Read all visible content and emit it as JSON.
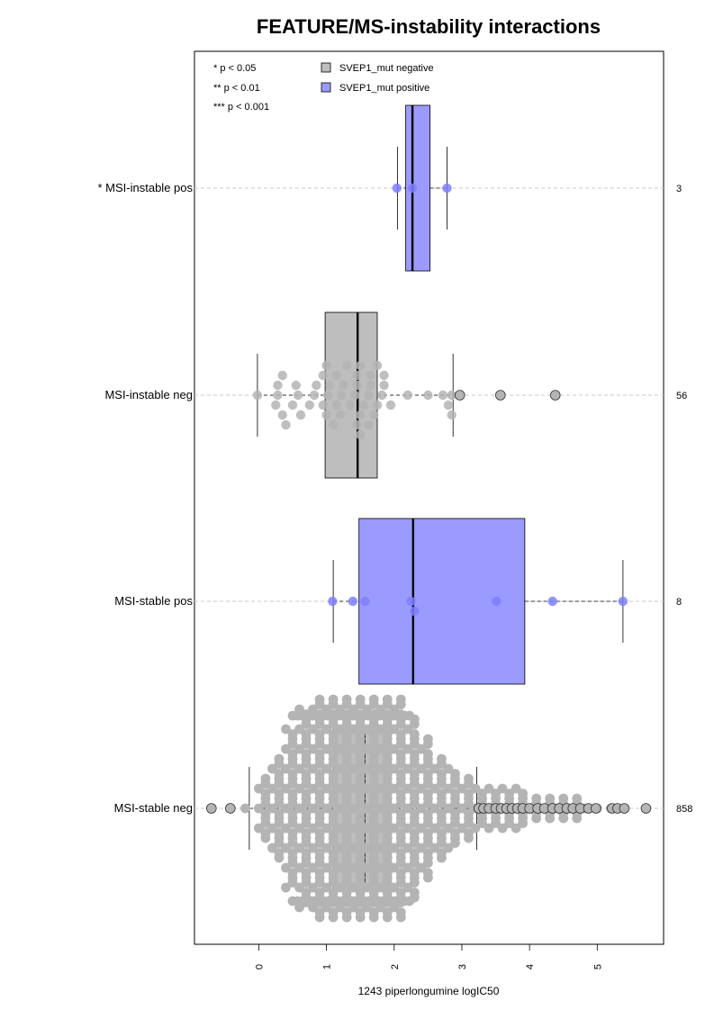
{
  "chart_data": {
    "type": "boxplot-beeswarm",
    "title": "FEATURE/MS-instability interactions",
    "xlabel": "1243 piperlongumine logIC50",
    "xlim": [
      -0.95,
      5.98
    ],
    "x_ticks": [
      "0",
      "1",
      "2",
      "3",
      "4",
      "5"
    ],
    "significance_legend": [
      "* p < 0.05",
      "** p < 0.01",
      "*** p < 0.001"
    ],
    "legend": [
      {
        "label": "SVEP1_mut negative",
        "color": "#bebebe"
      },
      {
        "label": "SVEP1_mut positive",
        "color": "#9b9bff"
      }
    ],
    "groups": [
      {
        "label": "* MSI-instable pos",
        "count": "3",
        "mutation": "positive",
        "box": {
          "min": 2.05,
          "q1": 2.17,
          "median": 2.27,
          "q3": 2.53,
          "max": 2.78
        },
        "points": [
          [
            2.04,
            0
          ],
          [
            2.27,
            0
          ],
          [
            2.78,
            0
          ]
        ],
        "outliers": []
      },
      {
        "label": "MSI-instable neg",
        "count": "56",
        "mutation": "negative",
        "box": {
          "min": -0.02,
          "q1": 0.98,
          "median": 1.46,
          "q3": 1.75,
          "max": 2.87
        },
        "points": [
          [
            -0.02,
            0
          ],
          [
            0.28,
            0
          ],
          [
            0.58,
            0
          ],
          [
            0.82,
            0
          ],
          [
            1.02,
            0
          ],
          [
            1.22,
            0
          ],
          [
            1.42,
            0
          ],
          [
            1.62,
            0
          ],
          [
            1.82,
            0
          ],
          [
            2.2,
            0
          ],
          [
            2.5,
            0
          ],
          [
            2.72,
            0
          ],
          [
            2.85,
            0
          ],
          [
            0.25,
            1
          ],
          [
            0.5,
            1
          ],
          [
            0.75,
            1
          ],
          [
            0.95,
            1
          ],
          [
            1.15,
            1
          ],
          [
            1.35,
            1
          ],
          [
            1.55,
            1
          ],
          [
            1.75,
            1
          ],
          [
            1.95,
            1
          ],
          [
            2.8,
            1
          ],
          [
            0.28,
            -1
          ],
          [
            0.55,
            -1
          ],
          [
            0.85,
            -1
          ],
          [
            1.05,
            -1
          ],
          [
            1.25,
            -1
          ],
          [
            1.45,
            -1
          ],
          [
            1.65,
            -1
          ],
          [
            1.85,
            -1
          ],
          [
            0.35,
            2
          ],
          [
            0.62,
            2
          ],
          [
            1.0,
            2
          ],
          [
            1.2,
            2
          ],
          [
            1.5,
            2
          ],
          [
            1.7,
            2
          ],
          [
            2.85,
            2
          ],
          [
            0.35,
            -2
          ],
          [
            0.95,
            -2
          ],
          [
            1.15,
            -2
          ],
          [
            1.45,
            -2
          ],
          [
            1.65,
            -2
          ],
          [
            1.85,
            -2
          ],
          [
            0.4,
            3
          ],
          [
            1.1,
            3
          ],
          [
            1.45,
            3
          ],
          [
            1.62,
            3
          ],
          [
            1.0,
            -3
          ],
          [
            1.3,
            -3
          ],
          [
            1.5,
            -3
          ],
          [
            1.75,
            -3
          ],
          [
            1.5,
            4
          ]
        ],
        "outliers": [
          2.97,
          3.57,
          4.38
        ]
      },
      {
        "label": "MSI-stable pos",
        "count": "8",
        "mutation": "positive",
        "box": {
          "min": 1.1,
          "q1": 1.48,
          "median": 2.28,
          "q3": 3.93,
          "max": 5.38
        },
        "points": [
          [
            1.09,
            0
          ],
          [
            1.39,
            0
          ],
          [
            1.57,
            0
          ],
          [
            2.25,
            0
          ],
          [
            2.3,
            1
          ],
          [
            3.51,
            0
          ],
          [
            4.34,
            0
          ],
          [
            5.38,
            0
          ]
        ],
        "outliers": []
      },
      {
        "label": "MSI-stable neg",
        "count": "858",
        "mutation": "negative",
        "box": {
          "min": -0.14,
          "q1": 1.1,
          "median": 1.56,
          "q3": 1.95,
          "max": 3.22
        },
        "swarm_profile": [
          [
            -0.2,
            1
          ],
          [
            0.0,
            4
          ],
          [
            0.2,
            6
          ],
          [
            0.4,
            9
          ],
          [
            0.6,
            11
          ],
          [
            0.8,
            12
          ],
          [
            1.0,
            12
          ],
          [
            1.2,
            12
          ],
          [
            1.4,
            12
          ],
          [
            1.6,
            12
          ],
          [
            1.8,
            12
          ],
          [
            2.0,
            12
          ],
          [
            2.2,
            10
          ],
          [
            2.4,
            8
          ],
          [
            2.6,
            6
          ],
          [
            2.8,
            5
          ],
          [
            3.0,
            4
          ],
          [
            3.2,
            3
          ],
          [
            3.4,
            3
          ],
          [
            3.6,
            3
          ],
          [
            3.8,
            3
          ],
          [
            4.0,
            2
          ],
          [
            4.2,
            2
          ],
          [
            4.4,
            2
          ],
          [
            4.6,
            2
          ],
          [
            4.8,
            1
          ],
          [
            5.0,
            1
          ],
          [
            5.2,
            1
          ],
          [
            5.4,
            1
          ]
        ],
        "outliers": [
          -0.7,
          -0.42,
          3.25,
          3.32,
          3.4,
          3.5,
          3.58,
          3.66,
          3.74,
          3.82,
          3.9,
          4.0,
          4.12,
          4.22,
          4.34,
          4.44,
          4.55,
          4.64,
          4.75,
          4.87,
          4.98,
          5.22,
          5.3,
          5.4,
          5.72
        ]
      }
    ]
  }
}
